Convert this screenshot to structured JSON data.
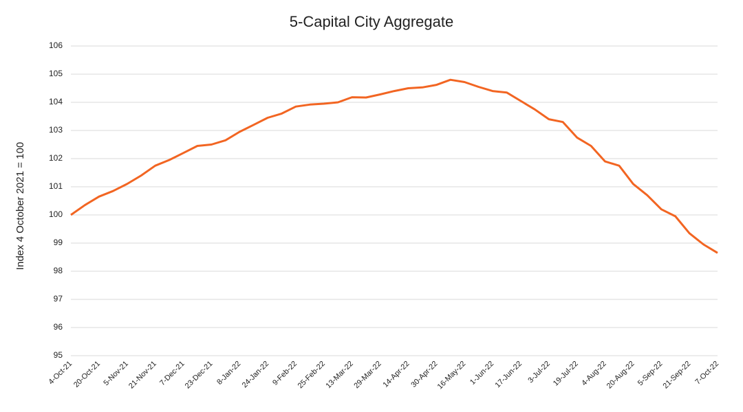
{
  "chart_data": {
    "type": "line",
    "title": "5-Capital City Aggregate",
    "y_label": "Index 4 October 2021 = 100",
    "categories": [
      "4-Oct-21",
      null,
      "20-Oct-21",
      null,
      "5-Nov-21",
      null,
      "21-Nov-21",
      null,
      "7-Dec-21",
      null,
      "23-Dec-21",
      null,
      "8-Jan-22",
      null,
      "24-Jan-22",
      null,
      "9-Feb-22",
      null,
      "25-Feb-22",
      null,
      "13-Mar-22",
      null,
      "29-Mar-22",
      null,
      "14-Apr-22",
      null,
      "30-Apr-22",
      null,
      "16-May-22",
      null,
      "1-Jun-22",
      null,
      "17-Jun-22",
      null,
      "3-Jul-22",
      null,
      "19-Jul-22",
      null,
      "4-Aug-22",
      null,
      "20-Aug-22",
      null,
      "5-Sep-22",
      null,
      "21-Sep-22",
      null,
      "7-Oct-22"
    ],
    "values": [
      100.0,
      100.35,
      100.65,
      100.85,
      101.1,
      101.4,
      101.75,
      101.95,
      102.2,
      102.45,
      102.5,
      102.65,
      102.95,
      103.2,
      103.45,
      103.6,
      103.85,
      103.92,
      103.95,
      104.0,
      104.18,
      104.17,
      104.28,
      104.4,
      104.5,
      104.53,
      104.62,
      104.8,
      104.72,
      104.55,
      104.4,
      104.35,
      104.05,
      103.75,
      103.4,
      103.3,
      102.75,
      102.45,
      101.9,
      101.75,
      101.1,
      100.7,
      100.2,
      99.95,
      99.35,
      98.95,
      98.65
    ],
    "color": "#f26522",
    "ylim": [
      95,
      106
    ],
    "yticks": [
      95,
      96,
      97,
      98,
      99,
      100,
      101,
      102,
      103,
      104,
      105,
      106
    ],
    "grid": true
  }
}
